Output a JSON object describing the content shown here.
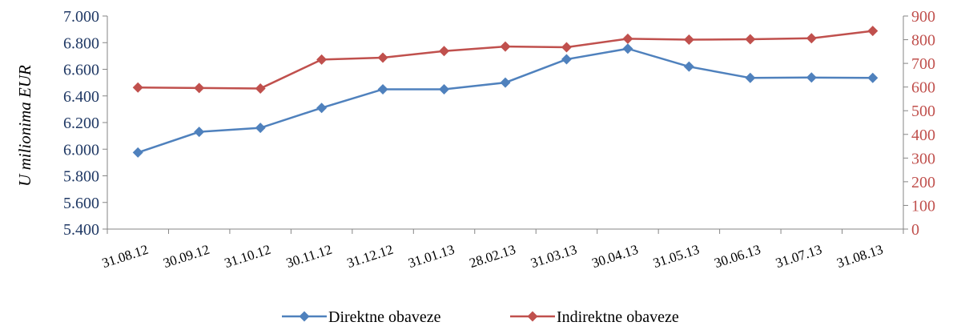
{
  "chart_data": {
    "type": "line",
    "title": "",
    "ylabel": "U milionima EUR",
    "y2label": "",
    "categories": [
      "31.08.12",
      "30.09.12",
      "31.10.12",
      "30.11.12",
      "31.12.12",
      "31.01.13",
      "28.02.13",
      "31.03.13",
      "30.04.13",
      "31.05.13",
      "30.06.13",
      "31.07.13",
      "31.08.13"
    ],
    "y_axis": {
      "min": 5400,
      "max": 7000,
      "step": 200,
      "tick_labels": [
        "5.400",
        "5.600",
        "5.800",
        "6.000",
        "6.200",
        "6.400",
        "6.600",
        "6.800",
        "7.000"
      ]
    },
    "y2_axis": {
      "min": 0,
      "max": 900,
      "step": 100,
      "tick_labels": [
        "0",
        "100",
        "200",
        "300",
        "400",
        "500",
        "600",
        "700",
        "800",
        "900"
      ]
    },
    "series": [
      {
        "name": "Direktne obaveze",
        "axis": "left",
        "color": "#4F81BD",
        "values": [
          5975,
          6130,
          6160,
          6310,
          6450,
          6450,
          6500,
          6675,
          6755,
          6620,
          6535,
          6538,
          6535
        ]
      },
      {
        "name": "Indirektne obaveze",
        "axis": "right",
        "color": "#C0504D",
        "values": [
          598,
          596,
          594,
          716,
          724,
          752,
          771,
          768,
          804,
          800,
          802,
          806,
          837
        ]
      }
    ],
    "grid": false,
    "legend": "bottom",
    "colors": {
      "left_axis_text": "#1F3864",
      "right_axis_text": "#C0504D",
      "axis_line": "#868686"
    }
  }
}
